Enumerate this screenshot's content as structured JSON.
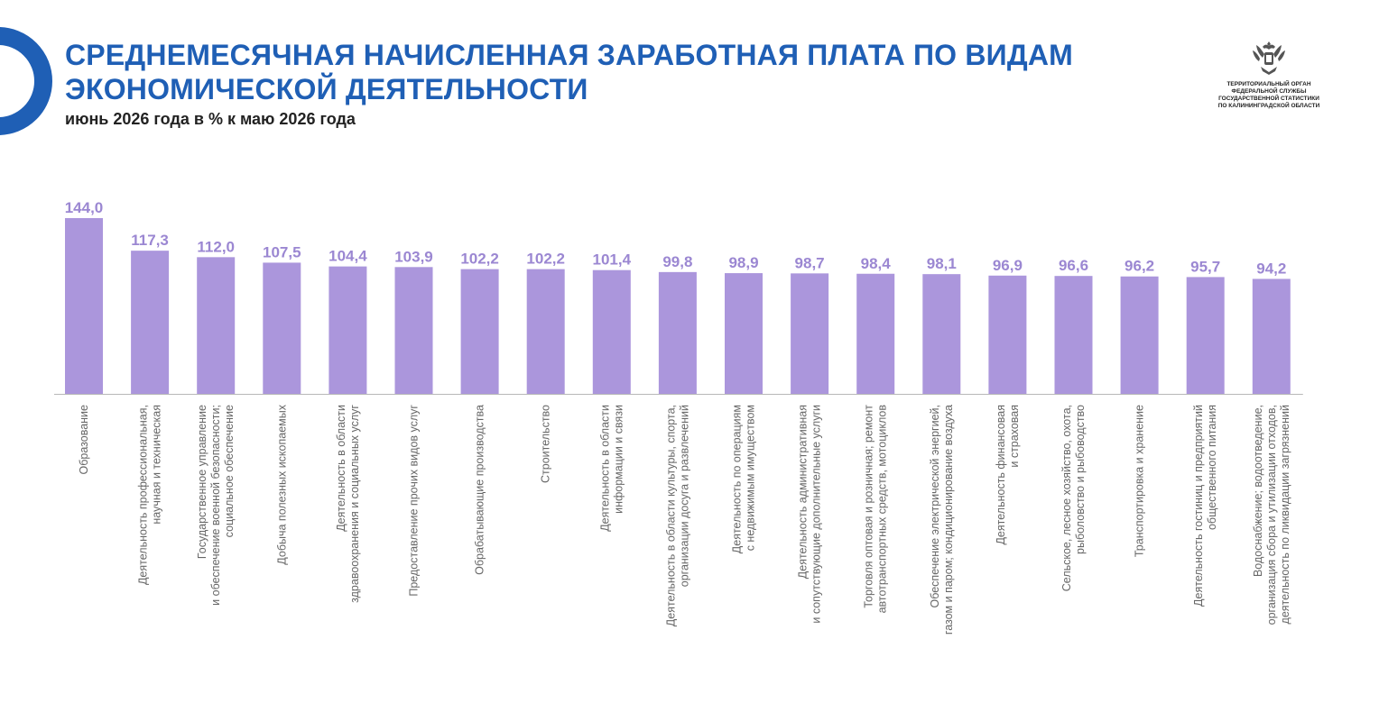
{
  "header": {
    "title": "СРЕДНЕМЕСЯЧНАЯ НАЧИСЛЕННАЯ ЗАРАБОТНАЯ ПЛАТА ПО ВИДАМ ЭКОНОМИЧЕСКОЙ ДЕЯТЕЛЬНОСТИ",
    "subtitle": "июнь 2026 года в % к маю 2026 года"
  },
  "agency": {
    "name": "ТЕРРИТОРИАЛЬНЫЙ ОРГАН\nФЕДЕРАЛЬНОЙ СЛУЖБЫ\nГОСУДАРСТВЕННОЙ СТАТИСТИКИ\nПО КАЛИНИНГРАДСКОЙ ОБЛАСТИ",
    "emblem_icon": "double-headed-eagle-icon"
  },
  "colors": {
    "accent": "#1f5fb5",
    "bar": "#ab96dc",
    "value_label": "#9b87d2",
    "category_label": "#666666",
    "axis": "#b8b8b8"
  },
  "chart_data": {
    "type": "bar",
    "title": "СРЕДНЕМЕСЯЧНАЯ НАЧИСЛЕННАЯ ЗАРАБОТНАЯ ПЛАТА ПО ВИДАМ ЭКОНОМИЧЕСКОЙ ДЕЯТЕЛЬНОСТИ",
    "subtitle": "июнь 2026 года в % к маю 2026 года",
    "xlabel": "",
    "ylabel": "",
    "ylim": [
      0,
      150
    ],
    "grid": false,
    "legend": "none",
    "categories": [
      [
        "Образование"
      ],
      [
        "Деятельность профессиональная,",
        "научная и техническая"
      ],
      [
        "Государственное управление",
        "и обеспечение военной безопасности;",
        "социальное обеспечение"
      ],
      [
        "Добыча полезных ископаемых"
      ],
      [
        "Деятельность в области",
        "здравоохранения и социальных услуг"
      ],
      [
        "Предоставление прочих видов услуг"
      ],
      [
        "Обрабатывающие производства"
      ],
      [
        "Строительство"
      ],
      [
        "Деятельность в области",
        "информации и связи"
      ],
      [
        "Деятельность в области культуры, спорта,",
        "организации досуга и развлечений"
      ],
      [
        "Деятельность по операциям",
        "с недвижимым имуществом"
      ],
      [
        "Деятельность административная",
        "и сопутствующие дополнительные услуги"
      ],
      [
        "Торговля оптовая и розничная; ремонт",
        "автотранспортных средств, мотоциклов"
      ],
      [
        "Обеспечение электрической энергией,",
        "газом и паром; кондиционирование воздуха"
      ],
      [
        "Деятельность финансовая",
        "и страховая"
      ],
      [
        "Сельское, лесное хозяйство, охота,",
        "рыболовство и рыбоводство"
      ],
      [
        "Транспортировка и хранение"
      ],
      [
        "Деятельность гостиниц и предприятий",
        "общественного питания"
      ],
      [
        "Водоснабжение; водоотведение,",
        "организация сбора и утилизации отходов,",
        "деятельность по ликвидации загрязнений"
      ]
    ],
    "values": [
      144.0,
      117.3,
      112.0,
      107.5,
      104.4,
      103.9,
      102.2,
      102.2,
      101.4,
      99.8,
      98.9,
      98.7,
      98.4,
      98.1,
      96.9,
      96.6,
      96.2,
      95.7,
      94.2
    ],
    "value_labels": [
      "144,0",
      "117,3",
      "112,0",
      "107,5",
      "104,4",
      "103,9",
      "102,2",
      "102,2",
      "101,4",
      "99,8",
      "98,9",
      "98,7",
      "98,4",
      "98,1",
      "96,9",
      "96,6",
      "96,2",
      "95,7",
      "94,2"
    ]
  }
}
